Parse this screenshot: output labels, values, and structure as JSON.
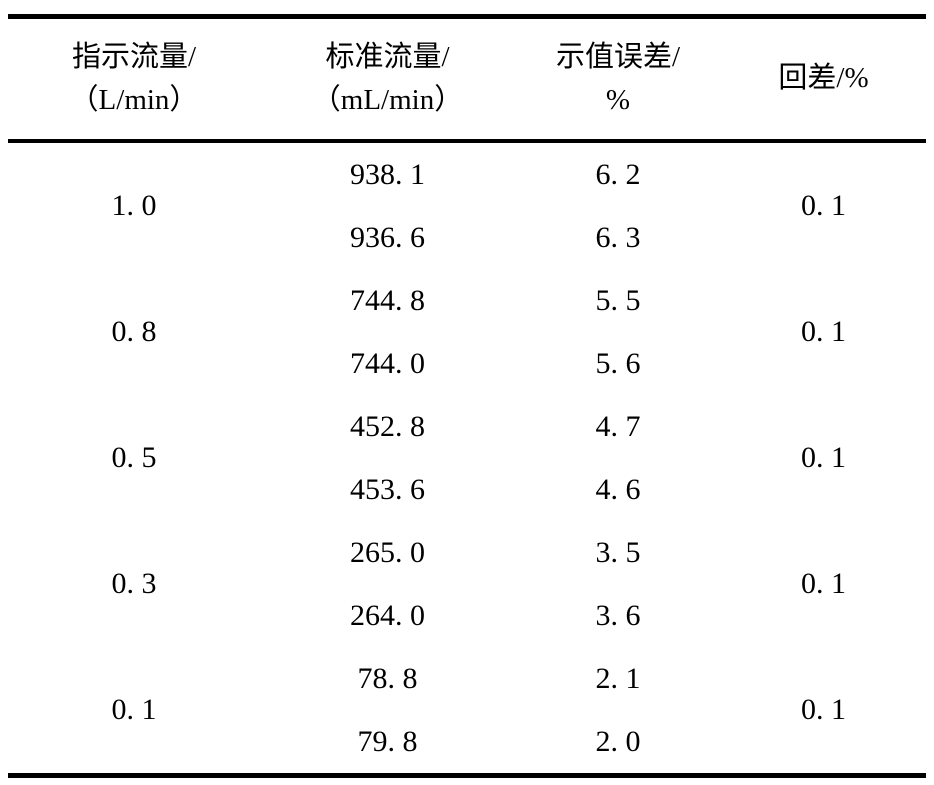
{
  "table": {
    "columns": [
      {
        "line1": "指示流量/",
        "line2": "（L/min）"
      },
      {
        "line1": "标准流量/",
        "line2": "（mL/min）"
      },
      {
        "line1": "示值误差/",
        "line2": "%"
      },
      {
        "line1": "回差/%",
        "line2": ""
      }
    ],
    "rows": [
      {
        "flow": "1. 0",
        "readings": [
          {
            "std": "938. 1",
            "err": "6. 2"
          },
          {
            "std": "936. 6",
            "err": "6. 3"
          }
        ],
        "hysteresis": "0. 1"
      },
      {
        "flow": "0. 8",
        "readings": [
          {
            "std": "744. 8",
            "err": "5. 5"
          },
          {
            "std": "744. 0",
            "err": "5. 6"
          }
        ],
        "hysteresis": "0. 1"
      },
      {
        "flow": "0. 5",
        "readings": [
          {
            "std": "452. 8",
            "err": "4. 7"
          },
          {
            "std": "453. 6",
            "err": "4. 6"
          }
        ],
        "hysteresis": "0. 1"
      },
      {
        "flow": "0. 3",
        "readings": [
          {
            "std": "265. 0",
            "err": "3. 5"
          },
          {
            "std": "264. 0",
            "err": "3. 6"
          }
        ],
        "hysteresis": "0. 1"
      },
      {
        "flow": "0. 1",
        "readings": [
          {
            "std": "78. 8",
            "err": "2. 1"
          },
          {
            "std": "79. 8",
            "err": "2. 0"
          }
        ],
        "hysteresis": "0. 1"
      }
    ]
  },
  "colors": {
    "rule": "#000000",
    "text": "#000000",
    "background": "#ffffff"
  }
}
